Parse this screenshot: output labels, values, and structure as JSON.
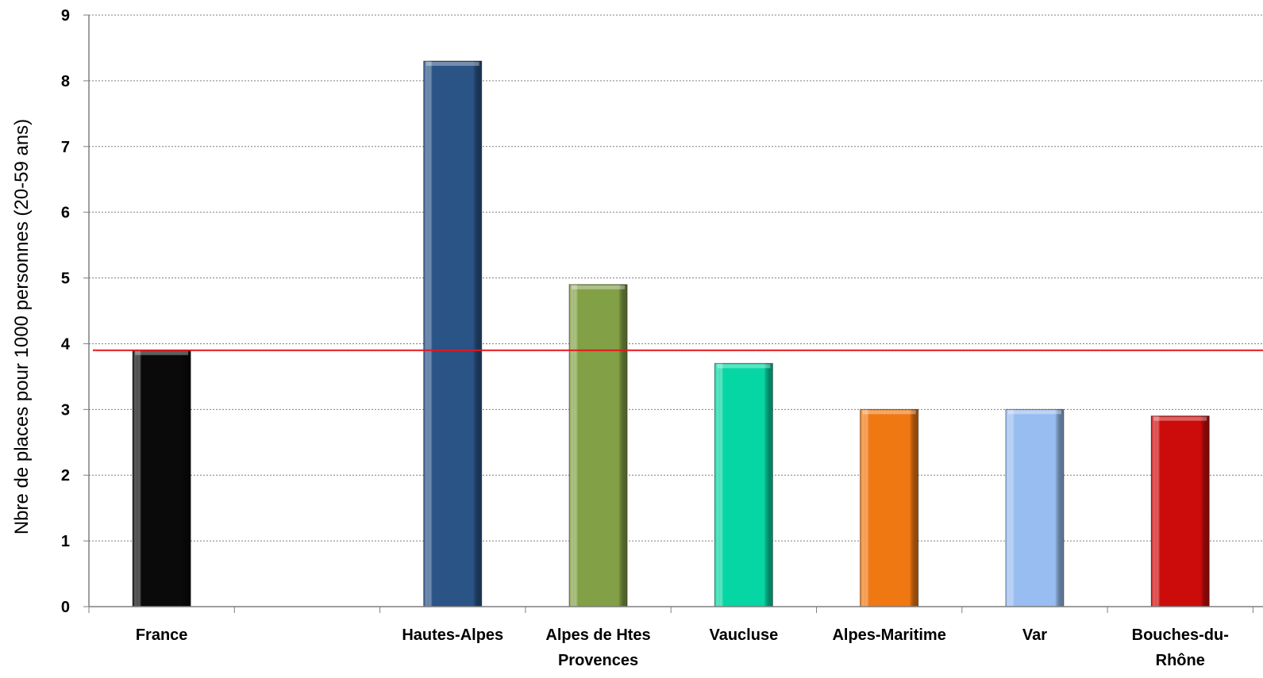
{
  "chart_data": {
    "type": "bar",
    "categories": [
      [
        "France"
      ],
      [
        ""
      ],
      [
        "Hautes-Alpes"
      ],
      [
        "Alpes de Htes",
        "Provences"
      ],
      [
        "Vaucluse"
      ],
      [
        "Alpes-Maritime"
      ],
      [
        "Var"
      ],
      [
        "Bouches-du-",
        "Rhône"
      ]
    ],
    "values": [
      3.9,
      null,
      8.3,
      4.9,
      3.7,
      3.0,
      3.0,
      2.9
    ],
    "bar_colors": [
      "#0a0a0a",
      null,
      "#2a5386",
      "#82a045",
      "#06d6a3",
      "#f07812",
      "#98bdf0",
      "#cc0b0b"
    ],
    "ylabel": "Nbre de places pour 1000 personnes (20-59 ans)",
    "ylim": [
      0,
      9
    ],
    "yticks": [
      "0",
      "1",
      "2",
      "3",
      "4",
      "5",
      "6",
      "7",
      "8",
      "9"
    ],
    "reference_line": {
      "value": 3.9,
      "color": "#e8141c"
    },
    "grid": true,
    "gridline_color": "#7f7f7f"
  }
}
